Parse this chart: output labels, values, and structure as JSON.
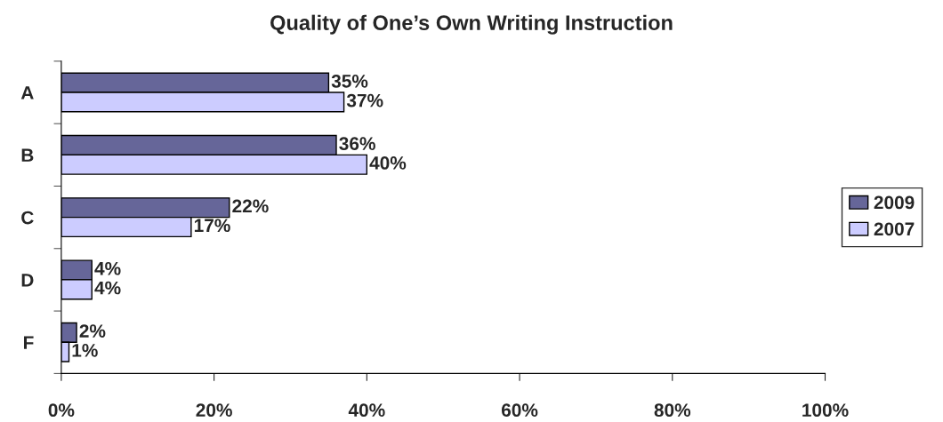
{
  "chart_data": {
    "type": "bar",
    "orientation": "horizontal",
    "title": "Quality of One’s Own Writing Instruction",
    "categories": [
      "A",
      "B",
      "C",
      "D",
      "F"
    ],
    "series": [
      {
        "name": "2009",
        "color": "#666699",
        "values": [
          35,
          36,
          22,
          4,
          2
        ],
        "value_labels": [
          "35%",
          "36%",
          "22%",
          "4%",
          "2%"
        ]
      },
      {
        "name": "2007",
        "color": "#ccccff",
        "values": [
          37,
          40,
          17,
          4,
          1
        ],
        "value_labels": [
          "37%",
          "40%",
          "17%",
          "4%",
          "1%"
        ]
      }
    ],
    "xlim": [
      0,
      100
    ],
    "xticks": [
      {
        "value": 0,
        "label": "0%"
      },
      {
        "value": 20,
        "label": "20%"
      },
      {
        "value": 40,
        "label": "40%"
      },
      {
        "value": 60,
        "label": "60%"
      },
      {
        "value": 80,
        "label": "80%"
      },
      {
        "value": 100,
        "label": "100%"
      }
    ],
    "grid": false,
    "legend": "right"
  }
}
